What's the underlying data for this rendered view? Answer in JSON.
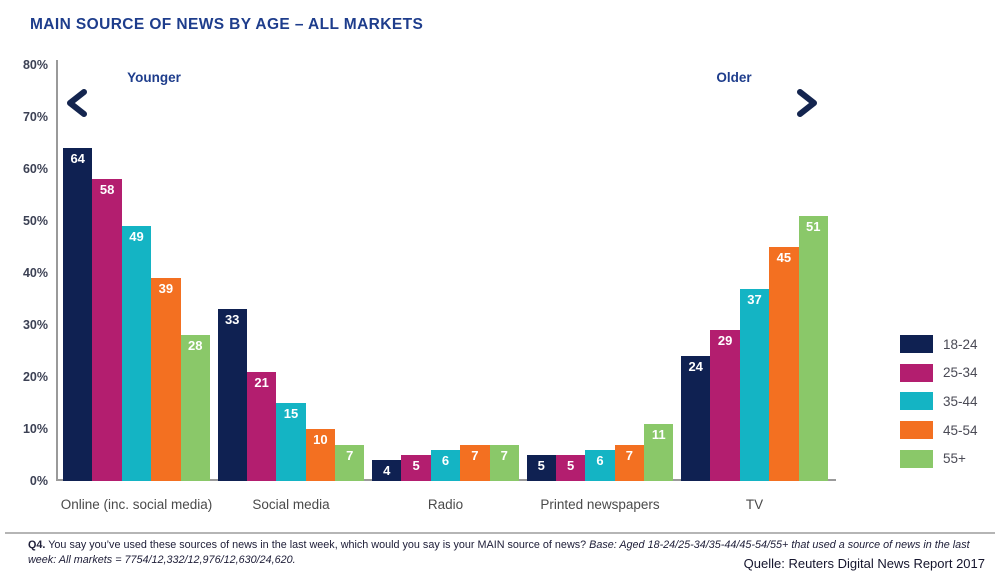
{
  "title": "MAIN SOURCE OF NEWS BY AGE – ALL MARKETS",
  "annotations": {
    "younger_label": "Younger",
    "older_label": "Older"
  },
  "chart_data": {
    "type": "bar",
    "title": "MAIN SOURCE OF NEWS BY AGE – ALL MARKETS",
    "categories": [
      "Online (inc. social media)",
      "Social media",
      "Radio",
      "Printed newspapers",
      "TV"
    ],
    "series": [
      {
        "name": "18-24",
        "color": "#0f2152",
        "values": [
          64,
          33,
          4,
          5,
          24
        ]
      },
      {
        "name": "25-34",
        "color": "#b31e6f",
        "values": [
          58,
          21,
          5,
          5,
          29
        ]
      },
      {
        "name": "35-44",
        "color": "#14b4c4",
        "values": [
          49,
          15,
          6,
          6,
          37
        ]
      },
      {
        "name": "45-54",
        "color": "#f37021",
        "values": [
          39,
          10,
          7,
          7,
          45
        ]
      },
      {
        "name": "55+",
        "color": "#8ac869",
        "values": [
          28,
          7,
          7,
          11,
          51
        ]
      }
    ],
    "ylim": [
      0,
      80
    ],
    "ytick_labels": [
      "0%",
      "10%",
      "20%",
      "30%",
      "40%",
      "50%",
      "60%",
      "70%",
      "80%"
    ],
    "value_labels": true,
    "grid": false,
    "legend_position": "right"
  },
  "footer": {
    "q_bold": "Q4.",
    "q_text": "You say you’ve used these sources of news in the last week, which would you say is your MAIN source of news?",
    "q_base_italic": "Base: Aged 18-24/25-34/35-44/45-54/55+ that used a source of news in the last week: All markets = 7754/12,332/12,976/12,630/24,620.",
    "source": "Quelle: Reuters Digital News Report 2017"
  },
  "colors": {
    "title": "#1e3d8c",
    "axis_line": "#9a9a9a",
    "tick_label": "#3c4154",
    "category_label": "#4a4a4a",
    "legend_label": "#4a4a55",
    "arrow_navy": "#14254f",
    "arrow_teal": "#2fc0d0",
    "divider": "#b5b5b5"
  }
}
